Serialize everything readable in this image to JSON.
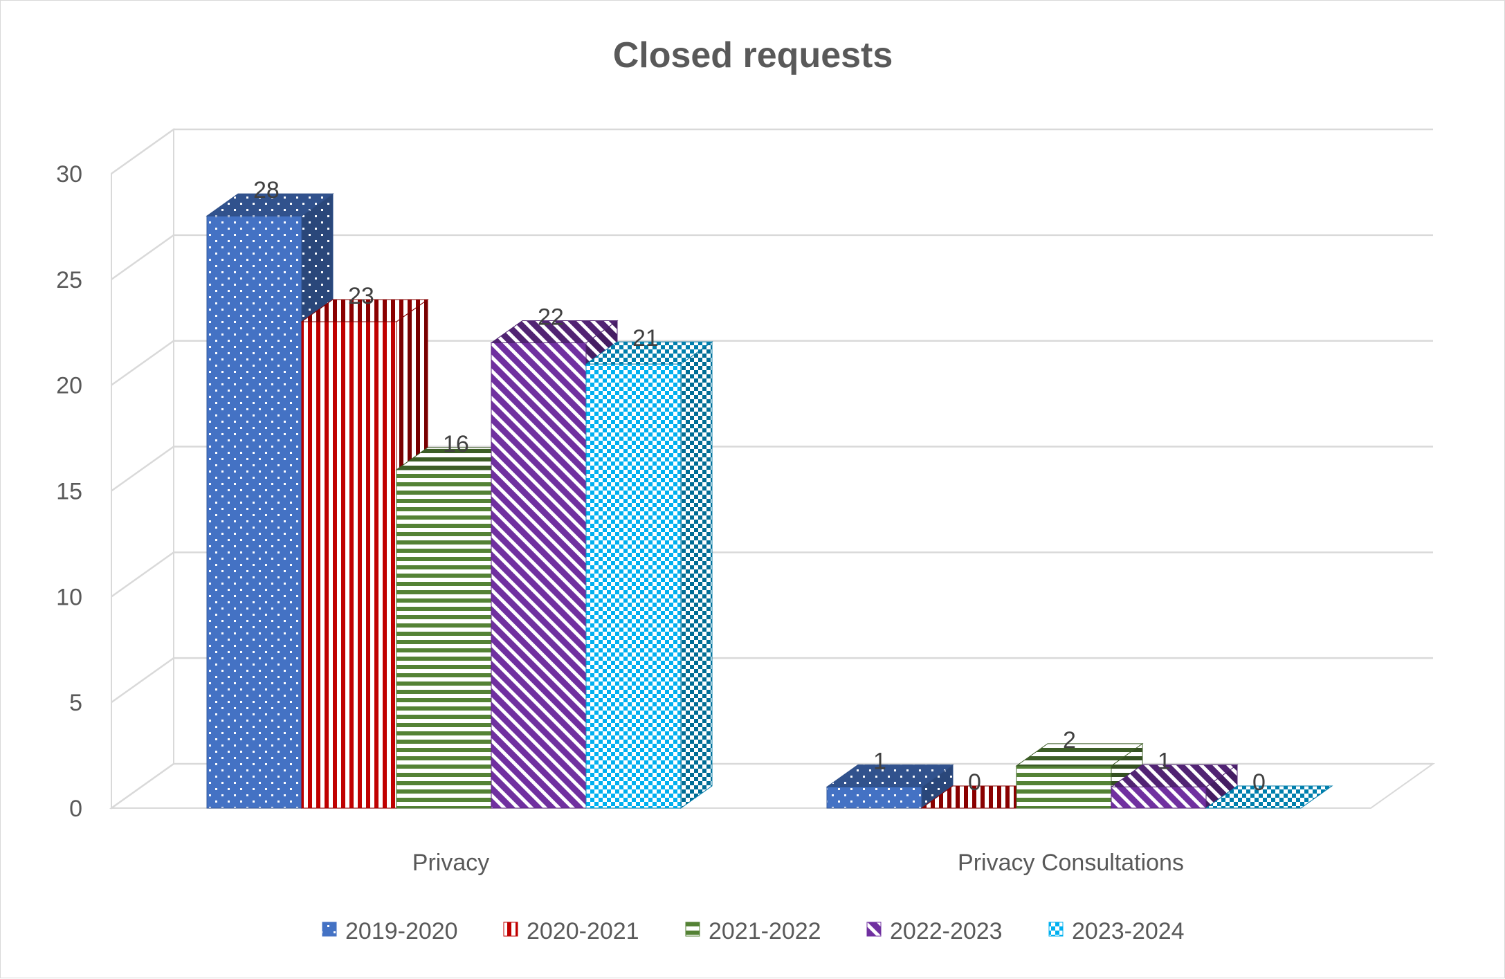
{
  "chart_data": {
    "type": "bar",
    "title": "Closed requests",
    "categories": [
      "Privacy",
      "Privacy Consultations"
    ],
    "series": [
      {
        "name": "2019-2020",
        "values": [
          28,
          1
        ],
        "color": "#4472c4",
        "pattern": "dots"
      },
      {
        "name": "2020-2021",
        "values": [
          23,
          0
        ],
        "color": "#c00000",
        "pattern": "vertical-stripes"
      },
      {
        "name": "2021-2022",
        "values": [
          16,
          2
        ],
        "color": "#548235",
        "pattern": "horizontal-stripes"
      },
      {
        "name": "2022-2023",
        "values": [
          22,
          1
        ],
        "color": "#7030a0",
        "pattern": "diagonal-stripes"
      },
      {
        "name": "2023-2024",
        "values": [
          21,
          0
        ],
        "color": "#00b0f0",
        "pattern": "checkerboard"
      }
    ],
    "ylim": [
      0,
      30
    ],
    "yticks": [
      0,
      5,
      10,
      15,
      20,
      25,
      30
    ],
    "grid": true,
    "legend": "bottom",
    "style": "3d-clustered-column"
  }
}
